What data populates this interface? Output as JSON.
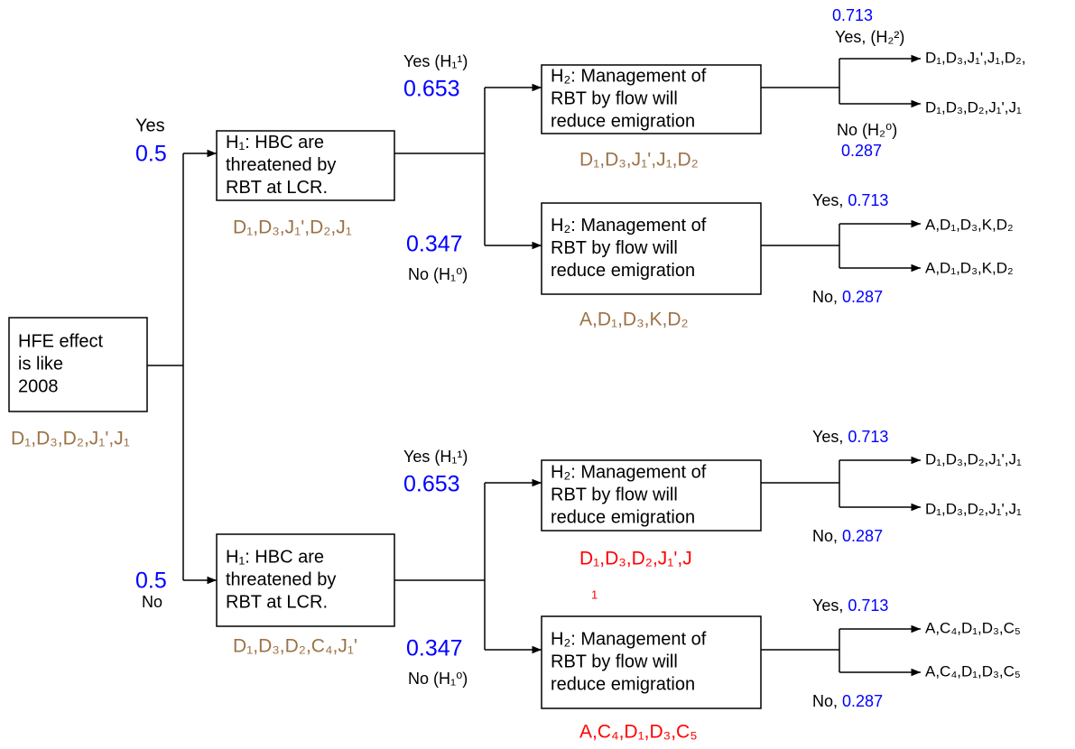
{
  "root": {
    "lines": [
      "HFE effect",
      "is like",
      "2008"
    ],
    "label": "D₁,D₃,D₂,J₁',J₁"
  },
  "branches": [
    {
      "answer": "Yes",
      "prob": 0.5,
      "lines": [
        "H₁:  HBC are",
        "threatened by",
        "RBT at LCR."
      ],
      "label": "D₁,D₃,J₁',D₂,J₁",
      "branches": [
        {
          "answer": "Yes (H₁¹)",
          "prob": 0.653,
          "lines": [
            "H₂: Management of",
            "RBT by flow will",
            "reduce emigration"
          ],
          "label": [
            "D₁,D₃,J₁',J₁,D₂"
          ],
          "outcomes": [
            {
              "answer": "Yes, (H₂²)",
              "prob": 0.713,
              "result": "D₁,D₃,J₁',J₁,D₂,"
            },
            {
              "answer": "No (H₂⁰)",
              "prob": 0.287,
              "result": "D₁,D₃,D₂,J₁',J₁"
            }
          ]
        },
        {
          "answer": "No (H₁⁰)",
          "prob": 0.347,
          "lines": [
            "H₂: Management of",
            "RBT by flow will",
            "reduce emigration"
          ],
          "label": [
            "A,D₁,D₃,K,D₂"
          ],
          "outcomes": [
            {
              "answer": "Yes,",
              "prob": 0.713,
              "result": "A,D₁,D₃,K,D₂"
            },
            {
              "answer": "No,",
              "prob": 0.287,
              "result": "A,D₁,D₃,K,D₂"
            }
          ]
        }
      ]
    },
    {
      "answer": "No",
      "prob": 0.5,
      "lines": [
        "H₁:  HBC are",
        "threatened by",
        "RBT at LCR."
      ],
      "label": "D₁,D₃,D₂,C₄,J₁'",
      "branches": [
        {
          "answer": "Yes (H₁¹)",
          "prob": 0.653,
          "lines": [
            "H₂: Management of",
            "RBT by flow will",
            "reduce emigration"
          ],
          "label": [
            "D₁,D₃,D₂,J₁',J",
            "1"
          ],
          "outcomes": [
            {
              "answer": "Yes,",
              "prob": 0.713,
              "result": "D₁,D₃,D₂,J₁',J₁"
            },
            {
              "answer": "No,",
              "prob": 0.287,
              "result": "D₁,D₃,D₂,J₁',J₁"
            }
          ]
        },
        {
          "answer": "No (H₁⁰)",
          "prob": 0.347,
          "lines": [
            "H₂: Management of",
            "RBT by flow will",
            "reduce emigration"
          ],
          "label": [
            "A,C₄,D₁,D₃,C₅"
          ],
          "outcomes": [
            {
              "answer": "Yes,",
              "prob": 0.713,
              "result": "A,C₄,D₁,D₃,C₅"
            },
            {
              "answer": "No,",
              "prob": 0.287,
              "result": "A,C₄,D₁,D₃,C₅"
            }
          ]
        }
      ]
    }
  ]
}
